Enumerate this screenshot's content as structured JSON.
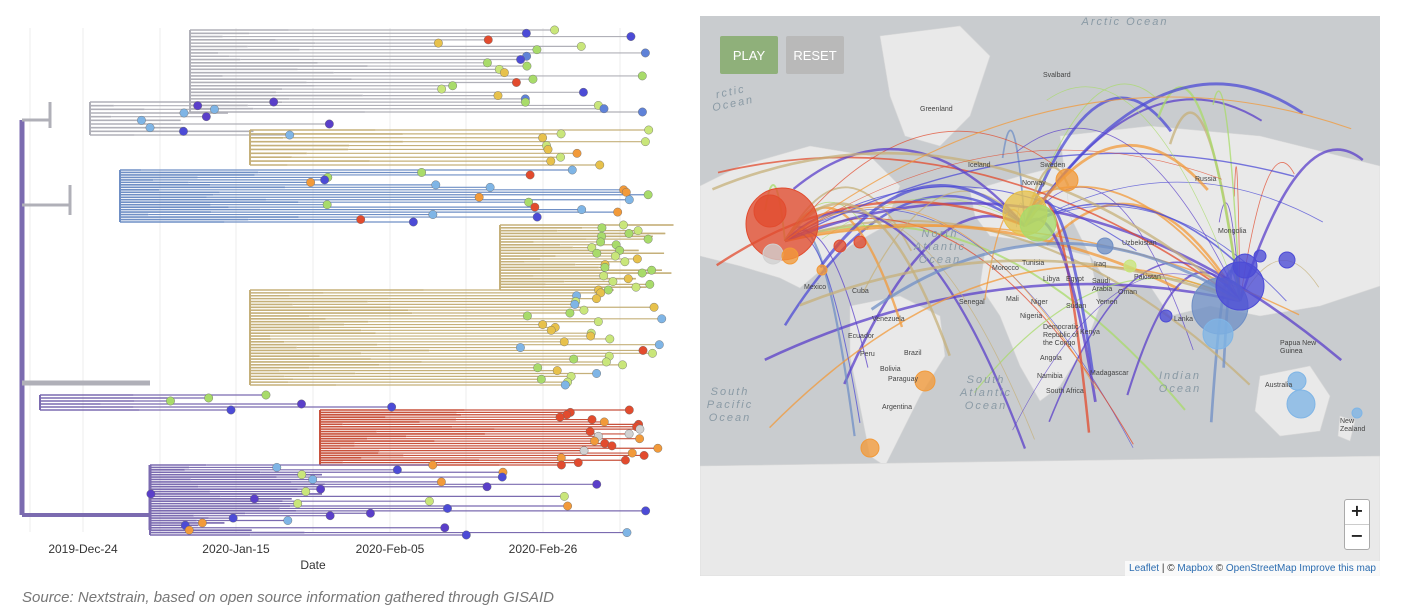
{
  "tree": {
    "axis_ticks": [
      "2019-Dec-24",
      "2020-Jan-15",
      "2020-Feb-05",
      "2020-Feb-26"
    ],
    "axis_title": "Date"
  },
  "map": {
    "play_label": "PLAY",
    "reset_label": "RESET",
    "zoom_in": "+",
    "zoom_out": "−",
    "attribution": {
      "leaflet": "Leaflet",
      "sep1": " | © ",
      "mapbox": "Mapbox",
      "sep2": " © ",
      "osm": "OpenStreetMap",
      "improve": "Improve this map"
    },
    "oceans": {
      "arctic": "Arctic Ocean",
      "arctic_left": "rctic Ocean",
      "north_atlantic": "North\nAtlantic\nOcean",
      "south_atlantic": "South\nAtlantic\nOcean",
      "south_pacific": "South\nPacific\nOcean",
      "indian": "Indian\nOcean"
    },
    "places": {
      "greenland": "Greenland",
      "svalbard": "Svalbard",
      "iceland": "Iceland",
      "sweden": "Sweden",
      "norway": "Norway",
      "russia": "Russia",
      "mongolia": "Mongolia",
      "uzbekistan": "Uzbekistan",
      "mexico": "Mexico",
      "cuba": "Cuba",
      "venezuela": "Venezuela",
      "ecuador": "Ecuador",
      "peru": "Peru",
      "brazil": "Brazil",
      "bolivia": "Bolivia",
      "paraguay": "Paraguay",
      "argentina": "Argentina",
      "morocco": "Morocco",
      "tunisia": "Tunisia",
      "libya": "Libya",
      "egypt": "Egypt",
      "saudi": "Saudi\nArabia",
      "iraq": "Iraq",
      "oman": "Oman",
      "yemen": "Yemen",
      "senegal": "Senegal",
      "mali": "Mali",
      "niger": "Niger",
      "nigeria": "Nigeria",
      "sudan": "Sudan",
      "drc": "Democratic\nRepublic of\nthe Congo",
      "kenya": "Kenya",
      "angola": "Angola",
      "namibia": "Namibia",
      "south_africa": "South Africa",
      "madagascar": "Madagascar",
      "pakistan": "Pakistan",
      "sri_lanka": "Lanka",
      "png": "Papua New\nGuinea",
      "australia": "Australia",
      "nz": "New\nZealand"
    }
  },
  "source_text": "Source: Nextstrain, based on open source information gathered through GISAID",
  "colors": {
    "map_land": "#e9e9e9",
    "map_water": "#c9cccf",
    "play": "#8fb07a",
    "reset": "#b9b9b9",
    "clade_purple": "#7b6bb0",
    "clade_tan": "#c5b07a",
    "clade_red": "#c8523d",
    "clade_blue": "#6f8fc5",
    "clade_grey": "#b0b0b8"
  }
}
